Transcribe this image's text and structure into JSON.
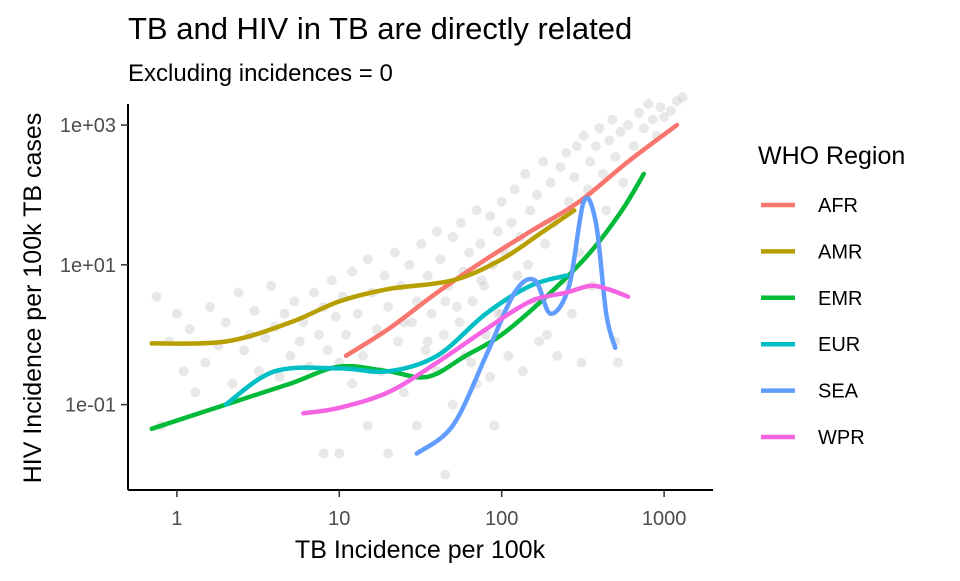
{
  "chart_data": {
    "type": "scatter",
    "title": "TB and HIV in TB are directly related",
    "subtitle": "Excluding incidences = 0",
    "xlabel": "TB Incidence per 100k",
    "ylabel": "HIV Incidence per 100k TB cases",
    "x_scale": "log10",
    "y_scale": "log10",
    "xlim": [
      0.5,
      2000
    ],
    "ylim": [
      0.006,
      2000
    ],
    "x_ticks": [
      {
        "value": 1,
        "label": "1"
      },
      {
        "value": 10,
        "label": "10"
      },
      {
        "value": 100,
        "label": "100"
      },
      {
        "value": 1000,
        "label": "1000"
      }
    ],
    "y_ticks": [
      {
        "value": 0.1,
        "label": "1e-01"
      },
      {
        "value": 10,
        "label": "1e+01"
      },
      {
        "value": 1000,
        "label": "1e+03"
      }
    ],
    "grid": false,
    "legend": {
      "title": "WHO Region",
      "position": "right",
      "entries": [
        {
          "name": "AFR",
          "color": "#F8766D"
        },
        {
          "name": "AMR",
          "color": "#B79F00"
        },
        {
          "name": "EMR",
          "color": "#00BA38"
        },
        {
          "name": "EUR",
          "color": "#00BFC4"
        },
        {
          "name": "SEA",
          "color": "#619CFF"
        },
        {
          "name": "WPR",
          "color": "#F564E3"
        }
      ]
    },
    "scatter_color": "#BEBEBE",
    "scatter_points": [
      [
        0.75,
        3.5
      ],
      [
        0.8,
        0.05
      ],
      [
        0.9,
        0.8
      ],
      [
        1,
        2
      ],
      [
        1.1,
        0.3
      ],
      [
        1.2,
        1.2
      ],
      [
        1.3,
        0.15
      ],
      [
        1.5,
        0.4
      ],
      [
        1.6,
        2.5
      ],
      [
        1.8,
        0.7
      ],
      [
        2,
        1.5
      ],
      [
        2.2,
        0.2
      ],
      [
        2.4,
        4
      ],
      [
        2.6,
        0.6
      ],
      [
        2.8,
        1
      ],
      [
        3,
        2.2
      ],
      [
        3.2,
        0.3
      ],
      [
        3.5,
        0.9
      ],
      [
        3.8,
        5
      ],
      [
        4,
        1.3
      ],
      [
        4.3,
        0.25
      ],
      [
        4.6,
        2
      ],
      [
        5,
        0.5
      ],
      [
        5.3,
        3
      ],
      [
        5.7,
        0.8
      ],
      [
        6,
        1.5
      ],
      [
        6.5,
        0.35
      ],
      [
        7,
        4
      ],
      [
        7.5,
        1
      ],
      [
        8,
        0.02
      ],
      [
        8,
        2.5
      ],
      [
        8.5,
        0.6
      ],
      [
        9,
        6
      ],
      [
        9.5,
        1.8
      ],
      [
        10,
        0.02
      ],
      [
        10,
        0.4
      ],
      [
        10.5,
        3.5
      ],
      [
        11,
        1
      ],
      [
        12,
        8
      ],
      [
        12,
        0.2
      ],
      [
        13,
        2
      ],
      [
        14,
        0.5
      ],
      [
        15,
        12
      ],
      [
        15,
        0.05
      ],
      [
        16,
        4
      ],
      [
        17,
        1.2
      ],
      [
        18,
        0.3
      ],
      [
        19,
        7
      ],
      [
        20,
        0.02
      ],
      [
        20,
        2.5
      ],
      [
        22,
        15
      ],
      [
        23,
        0.8
      ],
      [
        24,
        5
      ],
      [
        25,
        0.15
      ],
      [
        27,
        10
      ],
      [
        28,
        1.5
      ],
      [
        30,
        3
      ],
      [
        30,
        0.05
      ],
      [
        32,
        20
      ],
      [
        34,
        0.6
      ],
      [
        35,
        7
      ],
      [
        37,
        2
      ],
      [
        40,
        30
      ],
      [
        40,
        0.3
      ],
      [
        42,
        12
      ],
      [
        44,
        1
      ],
      [
        45,
        0.01
      ],
      [
        47,
        5
      ],
      [
        50,
        25
      ],
      [
        50,
        0.1
      ],
      [
        53,
        2.5
      ],
      [
        56,
        40
      ],
      [
        58,
        8
      ],
      [
        60,
        0.5
      ],
      [
        63,
        15
      ],
      [
        66,
        3
      ],
      [
        70,
        60
      ],
      [
        70,
        0.2
      ],
      [
        74,
        20
      ],
      [
        78,
        5
      ],
      [
        80,
        1
      ],
      [
        85,
        50
      ],
      [
        88,
        10
      ],
      [
        90,
        0.05
      ],
      [
        95,
        30
      ],
      [
        100,
        80
      ],
      [
        100,
        2
      ],
      [
        105,
        15
      ],
      [
        110,
        0.5
      ],
      [
        115,
        40
      ],
      [
        120,
        120
      ],
      [
        125,
        7
      ],
      [
        130,
        25
      ],
      [
        135,
        0.3
      ],
      [
        140,
        200
      ],
      [
        145,
        10
      ],
      [
        150,
        60
      ],
      [
        160,
        3
      ],
      [
        165,
        100
      ],
      [
        170,
        0.8
      ],
      [
        180,
        300
      ],
      [
        185,
        20
      ],
      [
        190,
        1
      ],
      [
        200,
        150
      ],
      [
        210,
        40
      ],
      [
        220,
        0.5
      ],
      [
        230,
        250
      ],
      [
        240,
        6
      ],
      [
        250,
        400
      ],
      [
        260,
        80
      ],
      [
        270,
        2
      ],
      [
        280,
        180
      ],
      [
        290,
        500
      ],
      [
        300,
        15
      ],
      [
        310,
        0.4
      ],
      [
        320,
        700
      ],
      [
        340,
        120
      ],
      [
        350,
        300
      ],
      [
        360,
        5
      ],
      [
        380,
        500
      ],
      [
        400,
        900
      ],
      [
        420,
        200
      ],
      [
        440,
        60
      ],
      [
        460,
        600
      ],
      [
        480,
        1200
      ],
      [
        500,
        0.8
      ],
      [
        500,
        350
      ],
      [
        520,
        0.4
      ],
      [
        540,
        800
      ],
      [
        560,
        150
      ],
      [
        600,
        1000
      ],
      [
        650,
        500
      ],
      [
        700,
        1500
      ],
      [
        750,
        900
      ],
      [
        800,
        2000
      ],
      [
        850,
        1200
      ],
      [
        900,
        700
      ],
      [
        950,
        1800
      ],
      [
        1000,
        1300
      ],
      [
        1100,
        1600
      ],
      [
        1200,
        2200
      ],
      [
        1300,
        2500
      ],
      [
        25,
        1.5
      ],
      [
        35,
        0.8
      ],
      [
        45,
        3
      ],
      [
        55,
        1.5
      ],
      [
        65,
        0.4
      ],
      [
        75,
        6
      ],
      [
        85,
        0.25
      ],
      [
        95,
        2
      ]
    ],
    "series": [
      {
        "name": "AFR",
        "points": [
          [
            11,
            0.5
          ],
          [
            20,
            1.2
          ],
          [
            40,
            4
          ],
          [
            80,
            12
          ],
          [
            150,
            30
          ],
          [
            300,
            80
          ],
          [
            600,
            300
          ],
          [
            1200,
            1000
          ]
        ]
      },
      {
        "name": "AMR",
        "points": [
          [
            0.7,
            0.75
          ],
          [
            2,
            0.8
          ],
          [
            5,
            1.5
          ],
          [
            10,
            3
          ],
          [
            20,
            4.5
          ],
          [
            50,
            6
          ],
          [
            100,
            12
          ],
          [
            180,
            30
          ],
          [
            280,
            60
          ]
        ]
      },
      {
        "name": "EMR",
        "points": [
          [
            0.7,
            0.045
          ],
          [
            2,
            0.1
          ],
          [
            5,
            0.2
          ],
          [
            10,
            0.35
          ],
          [
            20,
            0.3
          ],
          [
            35,
            0.25
          ],
          [
            60,
            0.5
          ],
          [
            100,
            1
          ],
          [
            200,
            4
          ],
          [
            350,
            15
          ],
          [
            550,
            60
          ],
          [
            750,
            200
          ]
        ]
      },
      {
        "name": "EUR",
        "points": [
          [
            2,
            0.1
          ],
          [
            4,
            0.3
          ],
          [
            10,
            0.33
          ],
          [
            20,
            0.3
          ],
          [
            40,
            0.5
          ],
          [
            80,
            2
          ],
          [
            150,
            5
          ],
          [
            250,
            7
          ]
        ]
      },
      {
        "name": "SEA",
        "points": [
          [
            30,
            0.02
          ],
          [
            50,
            0.05
          ],
          [
            80,
            0.5
          ],
          [
            120,
            4
          ],
          [
            160,
            6
          ],
          [
            200,
            2
          ],
          [
            260,
            5
          ],
          [
            320,
            80
          ],
          [
            380,
            40
          ],
          [
            440,
            2
          ],
          [
            500,
            0.65
          ]
        ]
      },
      {
        "name": "WPR",
        "points": [
          [
            6,
            0.075
          ],
          [
            10,
            0.09
          ],
          [
            20,
            0.15
          ],
          [
            40,
            0.4
          ],
          [
            80,
            1.2
          ],
          [
            150,
            3
          ],
          [
            250,
            4
          ],
          [
            350,
            5
          ],
          [
            450,
            4.5
          ],
          [
            600,
            3.5
          ]
        ]
      }
    ]
  }
}
